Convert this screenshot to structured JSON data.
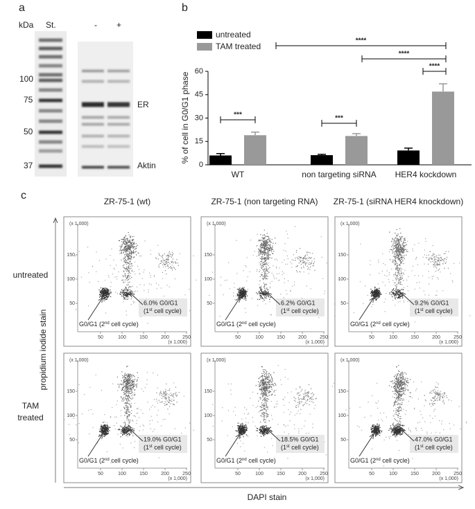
{
  "panel_labels": [
    "a",
    "b",
    "c"
  ],
  "blot": {
    "unit": "kDa",
    "lanes": [
      "St.",
      "-",
      "+"
    ],
    "markers": [
      100,
      75,
      50,
      37
    ],
    "bands": [
      "ER",
      "Aktin"
    ]
  },
  "chart_data": {
    "type": "bar",
    "categories": [
      "WT",
      "non targeting siRNA",
      "HER4 kockdown"
    ],
    "series": [
      {
        "name": "untreated",
        "color": "#000000",
        "values": [
          6,
          6.2,
          9.2
        ],
        "errors": [
          1.2,
          0.5,
          1.5
        ]
      },
      {
        "name": "TAM treated",
        "color": "#999999",
        "values": [
          19,
          18.5,
          47
        ],
        "errors": [
          2,
          1.5,
          5
        ]
      }
    ],
    "y_label": "% of cell in G0/G1 phase",
    "ylim": [
      0,
      60
    ],
    "yticks": [
      0,
      15,
      30,
      45,
      60
    ],
    "annotations": [
      "***",
      "***",
      "****",
      "****",
      "****"
    ]
  },
  "flow": {
    "columns": [
      "ZR-75-1 (wt)",
      "ZR-75-1 (non targeting RNA)",
      "ZR-75-1 (siRNA HER4 knockdown)"
    ],
    "rows": [
      [
        "untreated"
      ],
      [
        "TAM",
        "treated"
      ]
    ],
    "y_axis_label": "propidium iodide stain",
    "x_axis_label": "DAPI stain",
    "xticks": [
      50,
      100,
      150,
      200,
      250
    ],
    "yticks": [
      50,
      100,
      150
    ],
    "scale_note": "(x 1,000)",
    "first_cycle": [
      "(1",
      "st",
      " cell cycle)"
    ],
    "second_cycle": [
      "G0/G1 (2",
      "nd",
      " cell cycle)"
    ],
    "percents": [
      [
        "6.0% G0/G1",
        "6.2% G0/G1",
        "9.2% G0/G1"
      ],
      [
        "19.0% G0/G1",
        "18.5% G0/G1",
        "47.0% G0/G1"
      ]
    ]
  }
}
